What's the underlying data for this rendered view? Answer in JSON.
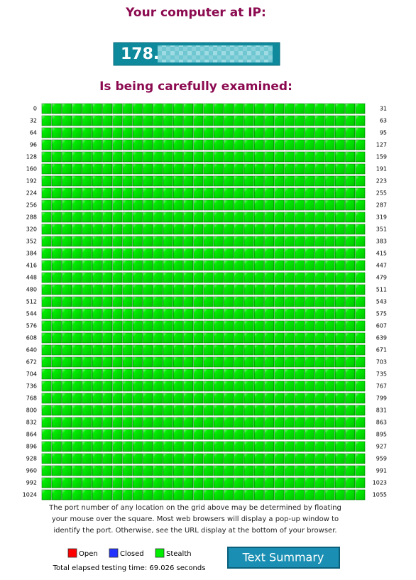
{
  "header": {
    "title": "Your computer at IP:",
    "ip": "178.",
    "subtitle": "Is being carefully examined:"
  },
  "grid": {
    "rows": [
      [
        0,
        31
      ],
      [
        32,
        63
      ],
      [
        64,
        95
      ],
      [
        96,
        127
      ],
      [
        128,
        159
      ],
      [
        160,
        191
      ],
      [
        192,
        223
      ],
      [
        224,
        255
      ],
      [
        256,
        287
      ],
      [
        288,
        319
      ],
      [
        320,
        351
      ],
      [
        352,
        383
      ],
      [
        384,
        415
      ],
      [
        416,
        447
      ],
      [
        448,
        479
      ],
      [
        480,
        511
      ],
      [
        512,
        543
      ],
      [
        544,
        575
      ],
      [
        576,
        607
      ],
      [
        608,
        639
      ],
      [
        640,
        671
      ],
      [
        672,
        703
      ],
      [
        704,
        735
      ],
      [
        736,
        767
      ],
      [
        768,
        799
      ],
      [
        800,
        831
      ],
      [
        832,
        863
      ],
      [
        864,
        895
      ],
      [
        896,
        927
      ],
      [
        928,
        959
      ],
      [
        960,
        991
      ],
      [
        992,
        1023
      ],
      [
        1024,
        1055
      ]
    ]
  },
  "note": [
    "The port number of any location on the grid above may be determined by floating",
    "your mouse over the square. Most web browsers will display a pop-up window to",
    "identify the port. Otherwise, see the URL display at the bottom of your browser."
  ],
  "legend": [
    {
      "label": "Open",
      "color": "#ff0000"
    },
    {
      "label": "Closed",
      "color": "#2233ff"
    },
    {
      "label": "Stealth",
      "color": "#00ee00"
    }
  ],
  "elapsed": "Total elapsed testing time: 69.026 seconds",
  "button": "Text Summary"
}
